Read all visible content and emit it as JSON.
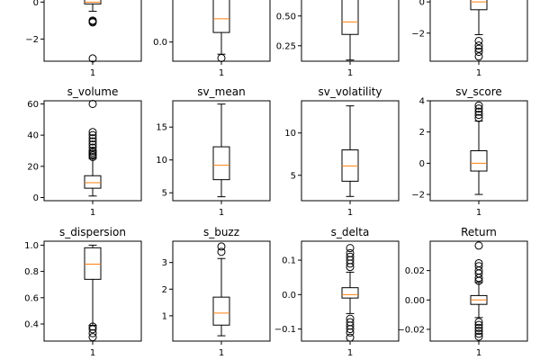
{
  "figure": {
    "type": "boxplot-grid",
    "rows": 3,
    "cols": 4
  },
  "colors": {
    "box": "#000000",
    "median": "#ff7f0e",
    "flier": "#000000",
    "background": "#ffffff"
  },
  "chart_data": [
    {
      "type": "box",
      "title": "",
      "category": "1",
      "ylim": [
        -3.2,
        0.6
      ],
      "yticks": [
        0,
        -2
      ],
      "ytick_labels": [
        "0",
        "−2"
      ],
      "q1": -0.1,
      "median": 0.0,
      "q3": 0.6,
      "whisker_low": -0.5,
      "whisker_high": 0.6,
      "fliers": [
        -1.0,
        -1.05,
        -1.1,
        -3.05
      ]
    },
    {
      "type": "box",
      "title": "",
      "category": "1",
      "ylim": [
        -0.6,
        1.6
      ],
      "yticks": [
        0.0
      ],
      "ytick_labels": [
        "0.0"
      ],
      "q1": 0.3,
      "median": 0.73,
      "q3": 1.4,
      "whisker_low": -0.38,
      "whisker_high": 1.6,
      "fliers": [
        -0.5
      ]
    },
    {
      "type": "box",
      "title": "",
      "category": "1",
      "ylim": [
        0.12,
        0.71
      ],
      "yticks": [
        0.5,
        0.25
      ],
      "ytick_labels": [
        "0.50",
        "0.25"
      ],
      "q1": 0.345,
      "median": 0.45,
      "q3": 0.71,
      "whisker_low": 0.13,
      "whisker_high": 0.71,
      "fliers": []
    },
    {
      "type": "box",
      "title": "",
      "category": "1",
      "ylim": [
        -3.8,
        0.7
      ],
      "yticks": [
        0,
        -2
      ],
      "ytick_labels": [
        "0",
        "−2"
      ],
      "q1": -0.5,
      "median": 0.0,
      "q3": 0.7,
      "whisker_low": -2.1,
      "whisker_high": 0.7,
      "fliers": [
        -2.5,
        -2.8,
        -3.0,
        -3.2,
        -3.5
      ]
    },
    {
      "type": "box",
      "title": "s_volume",
      "category": "1",
      "ylim": [
        -2,
        62
      ],
      "yticks": [
        0,
        20,
        40,
        60
      ],
      "ytick_labels": [
        "0",
        "20",
        "40",
        "60"
      ],
      "q1": 6,
      "median": 9.5,
      "q3": 14,
      "whisker_low": 1,
      "whisker_high": 25,
      "fliers": [
        26,
        27,
        28,
        29,
        30,
        32,
        34,
        36,
        38,
        40,
        42,
        60
      ]
    },
    {
      "type": "box",
      "title": "sv_mean",
      "category": "1",
      "ylim": [
        3.8,
        19
      ],
      "yticks": [
        5,
        10,
        15
      ],
      "ytick_labels": [
        "5",
        "10",
        "15"
      ],
      "q1": 7,
      "median": 9.2,
      "q3": 12,
      "whisker_low": 4.4,
      "whisker_high": 18.5,
      "fliers": []
    },
    {
      "type": "box",
      "title": "sv_volatility",
      "category": "1",
      "ylim": [
        2,
        13.8
      ],
      "yticks": [
        5,
        10
      ],
      "ytick_labels": [
        "5",
        "10"
      ],
      "q1": 4.3,
      "median": 6.1,
      "q3": 8.0,
      "whisker_low": 2.5,
      "whisker_high": 13.2,
      "fliers": []
    },
    {
      "type": "box",
      "title": "sv_score",
      "category": "1",
      "ylim": [
        -2.4,
        4
      ],
      "yticks": [
        -2,
        0,
        2,
        4
      ],
      "ytick_labels": [
        "−2",
        "0",
        "2",
        "4"
      ],
      "q1": -0.5,
      "median": 0.0,
      "q3": 0.8,
      "whisker_low": -2.0,
      "whisker_high": 2.7,
      "fliers": [
        2.9,
        3.1,
        3.3,
        3.5,
        3.7
      ]
    },
    {
      "type": "box",
      "title": "s_dispersion",
      "category": "1",
      "ylim": [
        0.27,
        1.03
      ],
      "yticks": [
        0.4,
        0.6,
        0.8,
        1.0
      ],
      "ytick_labels": [
        "0.4",
        "0.6",
        "0.8",
        "1.0"
      ],
      "q1": 0.74,
      "median": 0.855,
      "q3": 0.98,
      "whisker_low": 0.39,
      "whisker_high": 1.0,
      "fliers": [
        0.3,
        0.33,
        0.36,
        0.38
      ]
    },
    {
      "type": "box",
      "title": "s_buzz",
      "category": "1",
      "ylim": [
        0.05,
        3.8
      ],
      "yticks": [
        1,
        2,
        3
      ],
      "ytick_labels": [
        "1",
        "2",
        "3"
      ],
      "q1": 0.65,
      "median": 1.1,
      "q3": 1.7,
      "whisker_low": 0.25,
      "whisker_high": 3.15,
      "fliers": [
        3.4,
        3.6
      ]
    },
    {
      "type": "box",
      "title": "s_delta",
      "category": "1",
      "ylim": [
        -0.135,
        0.155
      ],
      "yticks": [
        0.1,
        0.0,
        -0.1
      ],
      "ytick_labels": [
        "0.1",
        "0.0",
        "−0.1"
      ],
      "q1": -0.01,
      "median": 0.0,
      "q3": 0.02,
      "whisker_low": -0.055,
      "whisker_high": 0.065,
      "fliers": [
        0.08,
        0.09,
        0.1,
        0.11,
        0.12,
        0.135,
        -0.07,
        -0.08,
        -0.09,
        -0.1,
        -0.11,
        -0.125
      ]
    },
    {
      "type": "box",
      "title": "Return",
      "category": "1",
      "ylim": [
        -0.028,
        0.04
      ],
      "yticks": [
        0.02,
        0.0,
        -0.02
      ],
      "ytick_labels": [
        "0.02",
        "0.00",
        "−0.02"
      ],
      "q1": -0.003,
      "median": 0.0,
      "q3": 0.003,
      "whisker_low": -0.012,
      "whisker_high": 0.012,
      "fliers": [
        0.013,
        0.015,
        0.018,
        0.02,
        0.023,
        0.025,
        0.037,
        -0.015,
        -0.017,
        -0.019,
        -0.021,
        -0.023,
        -0.025
      ]
    }
  ]
}
